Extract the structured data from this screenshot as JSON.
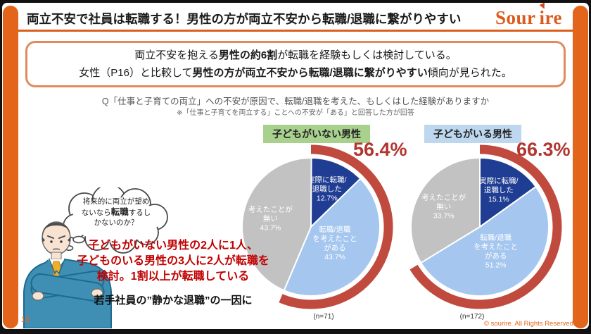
{
  "header": {
    "title": "両立不安で社員は転職する！男性の方が両立不安から転職/退職に繋がりやすい",
    "logo_part1": "Sour",
    "logo_part2": "ire"
  },
  "summary": {
    "line1_pre": "両立不安を抱える",
    "line1_bold": "男性の約6割",
    "line1_post": "が転職を経験もしくは検討している。",
    "line2_pre": "女性（P16）と比較して",
    "line2_bold": "男性の方が両立不安から転職/退職に繋がりやすい",
    "line2_post": "傾向が見られた。"
  },
  "question": {
    "text": "Q「仕事と子育ての両立」への不安が原因で、転職/退職を考えた、もしくはした経験がありますか",
    "note": "※「仕事と子育てを両立する」ことへの不安が「ある」と回答した方が回答"
  },
  "thought_bubble": {
    "line1": "将来的に両立が望め",
    "line2_pre": "ないなら",
    "line2_bold": "転職",
    "line2_post": "するし",
    "line3": "かないのか？"
  },
  "callout": {
    "red_line1": "子どもがいない男性の2人に1人、",
    "red_line2": "子どものいる男性の3人に2人が転職を",
    "red_line3": "検討。1割以上が転職している",
    "black_line": "若手社員の”静かな退職”の一因に"
  },
  "footer": {
    "page_number": "16",
    "copyright": "© sourire. All Rights Reserved."
  },
  "colors": {
    "accent_orange": "#E2651B",
    "percent_red": "#B23530",
    "arc_red": "#C14A3F"
  },
  "chart_data": [
    {
      "type": "pie",
      "title": "子どもがいない男性",
      "badge_color": "#A9D18E",
      "n_label": "(n=71)",
      "highlight_label": "56.4%",
      "highlight_value": 56.4,
      "arc_color": "#C14A3F",
      "segments": [
        {
          "label": "実際に転職/退職した",
          "value": 12.7,
          "color": "#1F3D92",
          "highlight": true,
          "lines": [
            "実際に転職/",
            "退職した",
            "12.7%"
          ]
        },
        {
          "label": "転職/退職を考えたことがある",
          "value": 43.7,
          "color": "#A4C6EF",
          "highlight": true,
          "lines": [
            "転職/退職",
            "を考えたこと",
            "がある",
            "43.7%"
          ]
        },
        {
          "label": "考えたことが無い",
          "value": 43.7,
          "color": "#C2C2C2",
          "highlight": false,
          "lines": [
            "考えたことが",
            "無い",
            "43.7%"
          ]
        }
      ]
    },
    {
      "type": "pie",
      "title": "子どもがいる男性",
      "badge_color": "#BDD7EE",
      "n_label": "(n=172)",
      "highlight_label": "66.3%",
      "highlight_value": 66.3,
      "arc_color": "#C14A3F",
      "segments": [
        {
          "label": "実際に転職/退職した",
          "value": 15.1,
          "color": "#1F3D92",
          "highlight": true,
          "lines": [
            "実際に転職/",
            "退職した",
            "15.1%"
          ]
        },
        {
          "label": "転職/退職を考えたことがある",
          "value": 51.2,
          "color": "#A4C6EF",
          "highlight": true,
          "lines": [
            "転職/退職",
            "を考えたこと",
            "がある",
            "51.2%"
          ]
        },
        {
          "label": "考えたことが無い",
          "value": 33.7,
          "color": "#C2C2C2",
          "highlight": false,
          "lines": [
            "考えたことが",
            "無い",
            "33.7%"
          ]
        }
      ]
    }
  ]
}
